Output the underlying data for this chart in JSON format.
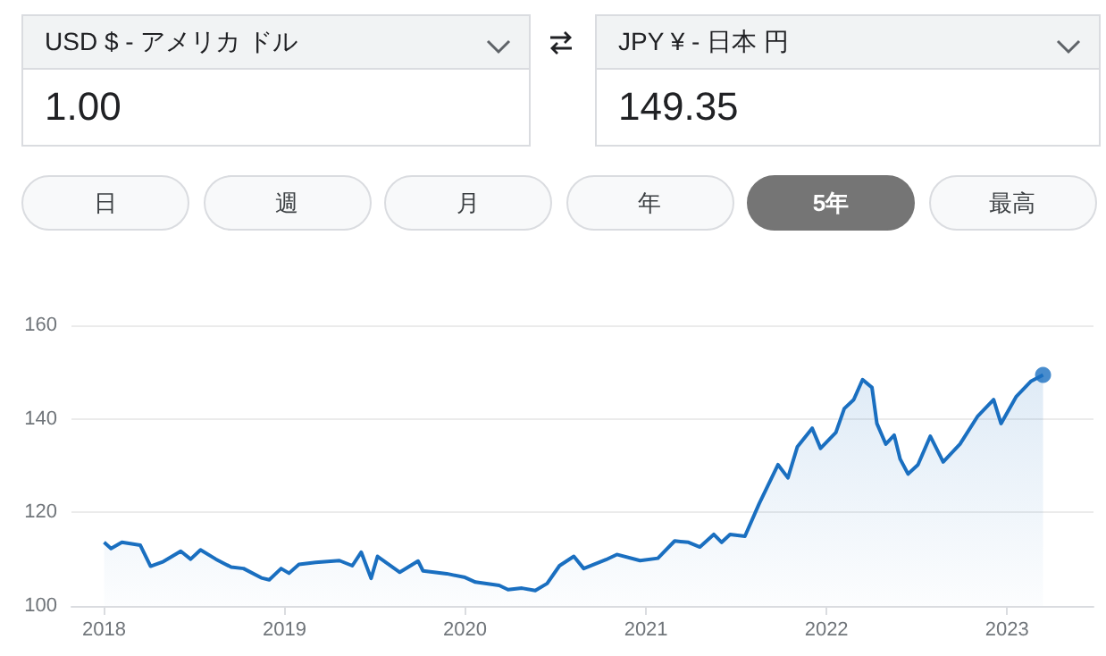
{
  "chart_data": {
    "type": "area",
    "grid": "y",
    "annotations": [
      "USD $ - アメリカ ドル",
      "JPY ¥ - 日本 円",
      "1.00",
      "149.35",
      "日",
      "週",
      "月",
      "年",
      "5年",
      "最高"
    ],
    "xlim": [
      "2017-10-27",
      "2023-06-25"
    ],
    "xticks": [
      {
        "value": "2018-01-01",
        "label": "2018"
      },
      {
        "value": "2019-01-01",
        "label": "2019"
      },
      {
        "value": "2020-01-01",
        "label": "2020"
      },
      {
        "value": "2021-01-01",
        "label": "2021"
      },
      {
        "value": "2022-01-01",
        "label": "2022"
      },
      {
        "value": "2023-01-01",
        "label": "2023"
      }
    ],
    "ylim": [
      100,
      160
    ],
    "yticks": [
      100,
      120,
      140,
      160
    ],
    "series": [
      {
        "marker": "none",
        "color": "#1a6fc0",
        "x": [
          "2018-01-01",
          "2018-01-15",
          "2018-02-06",
          "2018-03-15",
          "2018-04-05",
          "2018-05-01",
          "2018-06-05",
          "2018-06-25",
          "2018-07-15",
          "2018-08-15",
          "2018-09-15",
          "2018-10-10",
          "2018-11-15",
          "2018-12-01",
          "2018-12-25",
          "2019-01-10",
          "2019-01-30",
          "2019-03-05",
          "2019-04-22",
          "2019-05-18",
          "2019-06-05",
          "2019-06-25",
          "2019-07-08",
          "2019-08-22",
          "2019-09-28",
          "2019-10-08",
          "2019-11-25",
          "2020-01-01",
          "2020-01-22",
          "2020-03-10",
          "2020-03-28",
          "2020-04-25",
          "2020-05-22",
          "2020-06-15",
          "2020-07-10",
          "2020-08-08",
          "2020-08-28",
          "2020-10-12",
          "2020-11-03",
          "2020-12-20",
          "2021-01-25",
          "2021-02-28",
          "2021-03-28",
          "2021-04-20",
          "2021-05-18",
          "2021-06-03",
          "2021-06-20",
          "2021-07-20",
          "2021-08-18",
          "2021-09-25",
          "2021-10-15",
          "2021-11-03",
          "2021-12-03",
          "2021-12-20",
          "2022-01-20",
          "2022-02-06",
          "2022-02-25",
          "2022-03-15",
          "2022-04-03",
          "2022-04-13",
          "2022-05-01",
          "2022-05-18",
          "2022-05-30",
          "2022-06-15",
          "2022-07-05",
          "2022-07-30",
          "2022-08-25",
          "2022-09-28",
          "2022-11-03",
          "2022-12-05",
          "2022-12-20",
          "2023-01-20",
          "2023-02-18",
          "2023-03-15"
        ],
        "values": [
          113.6,
          112.3,
          113.6,
          113,
          108.5,
          109.5,
          111.7,
          110,
          112,
          110,
          108.3,
          108,
          106,
          105.6,
          108,
          107,
          108.9,
          109.3,
          109.7,
          108.6,
          111.5,
          105.9,
          110.6,
          107.2,
          109.6,
          107.5,
          106.9,
          106.1,
          105.1,
          104.4,
          103.5,
          103.8,
          103.3,
          104.8,
          108.6,
          110.6,
          108,
          109.9,
          111,
          109.7,
          110.2,
          113.9,
          113.6,
          112.6,
          115.3,
          113.6,
          115.3,
          114.9,
          121.9,
          130.2,
          127.4,
          134,
          138,
          133.7,
          137.1,
          142.2,
          144.1,
          148.4,
          146.7,
          139,
          134.6,
          136.5,
          131.4,
          128.2,
          130.2,
          136.3,
          130.8,
          134.6,
          140.6,
          144.1,
          139,
          144.8,
          148,
          149.4
        ]
      },
      {
        "type": "scatter",
        "marker": "circle",
        "color": "#1a6fc0",
        "x": [
          "2023-03-15"
        ],
        "values": [
          149.4
        ]
      }
    ]
  }
}
